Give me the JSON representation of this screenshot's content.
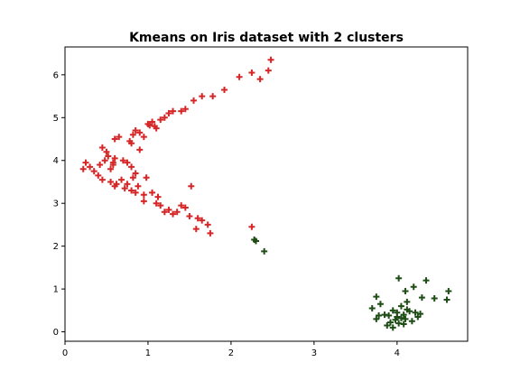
{
  "chart_data": {
    "type": "scatter",
    "title": "Kmeans on Iris dataset with 2 clusters",
    "xlabel": "",
    "ylabel": "",
    "xlim": [
      0,
      4.85
    ],
    "ylim": [
      -0.22,
      6.65
    ],
    "xticks": [
      0,
      1,
      2,
      3,
      4
    ],
    "yticks": [
      0,
      1,
      2,
      3,
      4,
      5,
      6
    ],
    "grid": false,
    "marker": "plus",
    "series": [
      {
        "color": "#d62728",
        "points": [
          [
            0.25,
            3.95
          ],
          [
            0.3,
            3.85
          ],
          [
            0.35,
            3.75
          ],
          [
            0.22,
            3.8
          ],
          [
            0.45,
            4.3
          ],
          [
            0.5,
            4.2
          ],
          [
            0.48,
            4.0
          ],
          [
            0.55,
            3.8
          ],
          [
            0.58,
            3.9
          ],
          [
            0.6,
            4.05
          ],
          [
            0.4,
            3.65
          ],
          [
            0.45,
            3.55
          ],
          [
            0.55,
            3.5
          ],
          [
            0.6,
            3.4
          ],
          [
            0.62,
            3.45
          ],
          [
            0.7,
            4.0
          ],
          [
            0.75,
            3.95
          ],
          [
            0.8,
            3.85
          ],
          [
            0.85,
            3.7
          ],
          [
            0.82,
            3.6
          ],
          [
            0.75,
            3.45
          ],
          [
            0.8,
            3.3
          ],
          [
            0.85,
            3.25
          ],
          [
            0.88,
            3.4
          ],
          [
            0.95,
            3.05
          ],
          [
            0.95,
            3.2
          ],
          [
            1.05,
            3.25
          ],
          [
            1.1,
            3.0
          ],
          [
            1.15,
            2.95
          ],
          [
            1.12,
            3.15
          ],
          [
            1.2,
            2.8
          ],
          [
            1.25,
            2.85
          ],
          [
            1.3,
            2.75
          ],
          [
            1.35,
            2.8
          ],
          [
            1.4,
            2.95
          ],
          [
            1.45,
            2.9
          ],
          [
            1.5,
            2.7
          ],
          [
            1.6,
            2.65
          ],
          [
            1.65,
            2.6
          ],
          [
            1.72,
            2.5
          ],
          [
            1.75,
            2.3
          ],
          [
            1.58,
            2.4
          ],
          [
            1.52,
            3.4
          ],
          [
            0.6,
            4.5
          ],
          [
            0.65,
            4.55
          ],
          [
            0.8,
            4.4
          ],
          [
            0.82,
            4.6
          ],
          [
            0.85,
            4.7
          ],
          [
            0.9,
            4.65
          ],
          [
            0.95,
            4.55
          ],
          [
            1.0,
            4.85
          ],
          [
            1.05,
            4.9
          ],
          [
            1.08,
            4.8
          ],
          [
            1.1,
            4.75
          ],
          [
            1.15,
            4.95
          ],
          [
            1.2,
            5.0
          ],
          [
            1.25,
            5.1
          ],
          [
            1.3,
            5.15
          ],
          [
            1.4,
            5.15
          ],
          [
            1.45,
            5.2
          ],
          [
            1.55,
            5.4
          ],
          [
            1.65,
            5.5
          ],
          [
            1.78,
            5.5
          ],
          [
            1.92,
            5.65
          ],
          [
            2.1,
            5.95
          ],
          [
            2.25,
            6.05
          ],
          [
            2.35,
            5.9
          ],
          [
            2.45,
            6.1
          ],
          [
            2.48,
            6.35
          ],
          [
            2.25,
            2.45
          ],
          [
            0.42,
            3.9
          ],
          [
            0.52,
            4.1
          ],
          [
            0.68,
            3.55
          ],
          [
            0.72,
            3.35
          ],
          [
            0.9,
            4.25
          ],
          [
            0.78,
            4.45
          ],
          [
            1.02,
            4.82
          ],
          [
            0.58,
            3.95
          ],
          [
            0.98,
            3.6
          ]
        ]
      },
      {
        "color": "#1f4d16",
        "points": [
          [
            2.28,
            2.15
          ],
          [
            2.3,
            2.12
          ],
          [
            2.4,
            1.88
          ],
          [
            4.02,
            1.25
          ],
          [
            4.35,
            1.2
          ],
          [
            4.2,
            1.05
          ],
          [
            4.1,
            0.95
          ],
          [
            4.62,
            0.95
          ],
          [
            3.75,
            0.82
          ],
          [
            4.3,
            0.8
          ],
          [
            4.45,
            0.78
          ],
          [
            4.6,
            0.75
          ],
          [
            4.12,
            0.7
          ],
          [
            3.8,
            0.65
          ],
          [
            4.05,
            0.6
          ],
          [
            3.7,
            0.55
          ],
          [
            3.95,
            0.5
          ],
          [
            4.15,
            0.48
          ],
          [
            4.22,
            0.45
          ],
          [
            4.28,
            0.42
          ],
          [
            3.85,
            0.4
          ],
          [
            3.9,
            0.38
          ],
          [
            4.0,
            0.35
          ],
          [
            4.05,
            0.32
          ],
          [
            4.1,
            0.3
          ],
          [
            3.78,
            0.38
          ],
          [
            3.98,
            0.28
          ],
          [
            4.02,
            0.2
          ],
          [
            3.88,
            0.15
          ],
          [
            4.08,
            0.18
          ],
          [
            3.95,
            0.1
          ],
          [
            4.18,
            0.25
          ],
          [
            3.75,
            0.3
          ],
          [
            4.0,
            0.45
          ],
          [
            4.12,
            0.52
          ],
          [
            4.08,
            0.4
          ],
          [
            3.92,
            0.22
          ],
          [
            4.25,
            0.35
          ]
        ]
      }
    ]
  }
}
